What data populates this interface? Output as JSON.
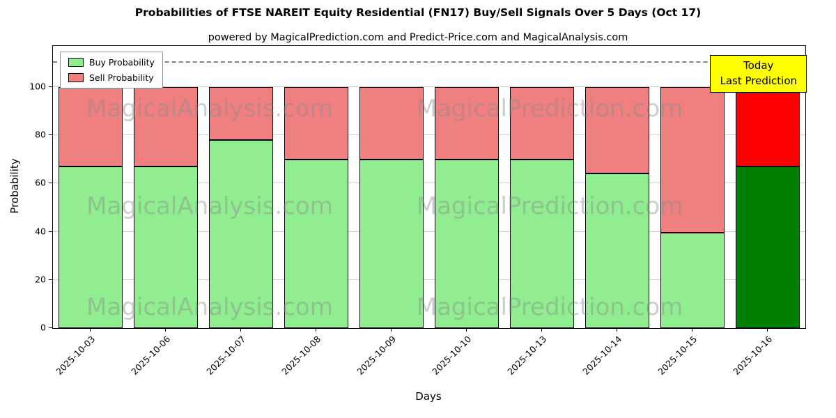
{
  "annotation": {
    "line1": "Today",
    "line2": "Last Prediction",
    "bg_color": "#ffff00"
  },
  "watermarks": {
    "left": "MagicalAnalysis.com",
    "right": "MagicalPrediction.com"
  },
  "chart_data": {
    "type": "bar",
    "stacked": true,
    "title": "Probabilities of FTSE NAREIT Equity Residential (FN17) Buy/Sell Signals Over 5 Days (Oct 17)",
    "subtitle": "powered by MagicalPrediction.com and Predict-Price.com and MagicalAnalysis.com",
    "xlabel": "Days",
    "ylabel": "Probability",
    "categories": [
      "2025-10-03",
      "2025-10-06",
      "2025-10-07",
      "2025-10-08",
      "2025-10-09",
      "2025-10-10",
      "2025-10-13",
      "2025-10-14",
      "2025-10-15",
      "2025-10-16"
    ],
    "series": [
      {
        "name": "Buy Probability",
        "values": [
          67,
          67,
          78,
          70,
          70,
          70,
          70,
          64,
          39.5,
          67
        ]
      },
      {
        "name": "Sell Probability",
        "values": [
          33,
          33,
          22,
          30,
          30,
          30,
          30,
          36,
          60.5,
          33
        ]
      }
    ],
    "colors": {
      "buy": "#90ee90",
      "sell": "#f08080",
      "buy_today": "#008000",
      "sell_today": "#ff0000",
      "edge": "#000000"
    },
    "ylim": [
      0,
      117
    ],
    "yticks": [
      0,
      20,
      40,
      60,
      80,
      100
    ],
    "grid": true,
    "dashed_line_y": 110,
    "legend_position": "upper left",
    "today_index": 9
  }
}
